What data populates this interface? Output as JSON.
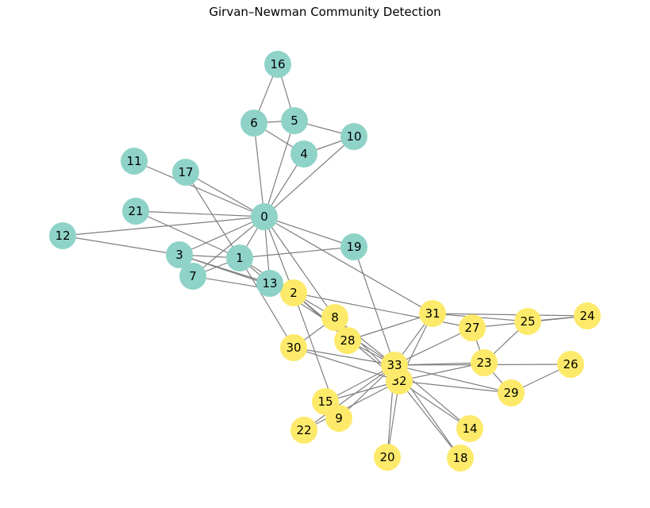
{
  "title": "Girvan–Newman Community Detection",
  "colors": {
    "community_a": "#8fd3c8",
    "community_b": "#feea6a",
    "edge": "#7f7f7f"
  },
  "communities": {
    "community_a": [
      "0",
      "1",
      "3",
      "4",
      "5",
      "6",
      "7",
      "10",
      "11",
      "12",
      "13",
      "16",
      "17",
      "19",
      "21"
    ],
    "community_b": [
      "2",
      "8",
      "9",
      "14",
      "15",
      "18",
      "20",
      "22",
      "23",
      "24",
      "25",
      "26",
      "27",
      "28",
      "29",
      "30",
      "31",
      "32",
      "33"
    ]
  },
  "edges": [
    [
      "0",
      "1"
    ],
    [
      "0",
      "2"
    ],
    [
      "0",
      "3"
    ],
    [
      "0",
      "4"
    ],
    [
      "0",
      "5"
    ],
    [
      "0",
      "6"
    ],
    [
      "0",
      "7"
    ],
    [
      "0",
      "8"
    ],
    [
      "0",
      "10"
    ],
    [
      "0",
      "11"
    ],
    [
      "0",
      "12"
    ],
    [
      "0",
      "13"
    ],
    [
      "0",
      "17"
    ],
    [
      "0",
      "19"
    ],
    [
      "0",
      "21"
    ],
    [
      "0",
      "31"
    ],
    [
      "1",
      "2"
    ],
    [
      "1",
      "3"
    ],
    [
      "1",
      "7"
    ],
    [
      "1",
      "13"
    ],
    [
      "1",
      "17"
    ],
    [
      "1",
      "19"
    ],
    [
      "1",
      "21"
    ],
    [
      "1",
      "30"
    ],
    [
      "2",
      "3"
    ],
    [
      "2",
      "7"
    ],
    [
      "2",
      "8"
    ],
    [
      "2",
      "9"
    ],
    [
      "2",
      "13"
    ],
    [
      "2",
      "27"
    ],
    [
      "2",
      "28"
    ],
    [
      "2",
      "32"
    ],
    [
      "3",
      "7"
    ],
    [
      "3",
      "12"
    ],
    [
      "3",
      "13"
    ],
    [
      "4",
      "6"
    ],
    [
      "4",
      "10"
    ],
    [
      "5",
      "6"
    ],
    [
      "5",
      "10"
    ],
    [
      "5",
      "16"
    ],
    [
      "6",
      "16"
    ],
    [
      "8",
      "30"
    ],
    [
      "8",
      "32"
    ],
    [
      "8",
      "33"
    ],
    [
      "9",
      "33"
    ],
    [
      "13",
      "33"
    ],
    [
      "14",
      "32"
    ],
    [
      "14",
      "33"
    ],
    [
      "15",
      "32"
    ],
    [
      "15",
      "33"
    ],
    [
      "18",
      "32"
    ],
    [
      "18",
      "33"
    ],
    [
      "19",
      "33"
    ],
    [
      "20",
      "32"
    ],
    [
      "20",
      "33"
    ],
    [
      "22",
      "32"
    ],
    [
      "22",
      "33"
    ],
    [
      "23",
      "25"
    ],
    [
      "23",
      "27"
    ],
    [
      "23",
      "29"
    ],
    [
      "23",
      "32"
    ],
    [
      "23",
      "33"
    ],
    [
      "24",
      "25"
    ],
    [
      "24",
      "27"
    ],
    [
      "24",
      "31"
    ],
    [
      "25",
      "31"
    ],
    [
      "26",
      "29"
    ],
    [
      "26",
      "33"
    ],
    [
      "27",
      "33"
    ],
    [
      "28",
      "31"
    ],
    [
      "28",
      "33"
    ],
    [
      "29",
      "32"
    ],
    [
      "29",
      "33"
    ],
    [
      "30",
      "32"
    ],
    [
      "30",
      "33"
    ],
    [
      "31",
      "32"
    ],
    [
      "31",
      "33"
    ],
    [
      "32",
      "33"
    ]
  ]
}
